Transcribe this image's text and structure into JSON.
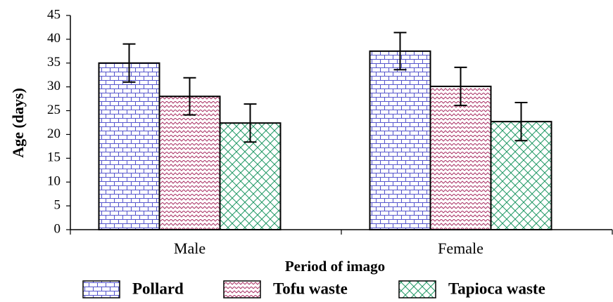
{
  "chart_data": {
    "type": "bar",
    "x_label": "Period of imago",
    "y_label": "Age (days)",
    "categories": [
      "Male",
      "Female"
    ],
    "series": [
      {
        "name": "Pollard",
        "color": "#5555cc",
        "pattern": "brick",
        "values": [
          35,
          37.5
        ],
        "errors": [
          4,
          3.9
        ]
      },
      {
        "name": "Tofu waste",
        "color": "#aa3366",
        "pattern": "zigzag",
        "values": [
          28,
          30.1
        ],
        "errors": [
          3.9,
          4
        ]
      },
      {
        "name": "Tapioca waste",
        "color": "#229966",
        "pattern": "crosshatch",
        "values": [
          22.4,
          22.7
        ],
        "errors": [
          4,
          4
        ]
      }
    ],
    "ylim": [
      0,
      45
    ],
    "yticks": [
      0,
      5,
      10,
      15,
      20,
      25,
      30,
      35,
      40,
      45
    ],
    "legend": "bottom"
  }
}
